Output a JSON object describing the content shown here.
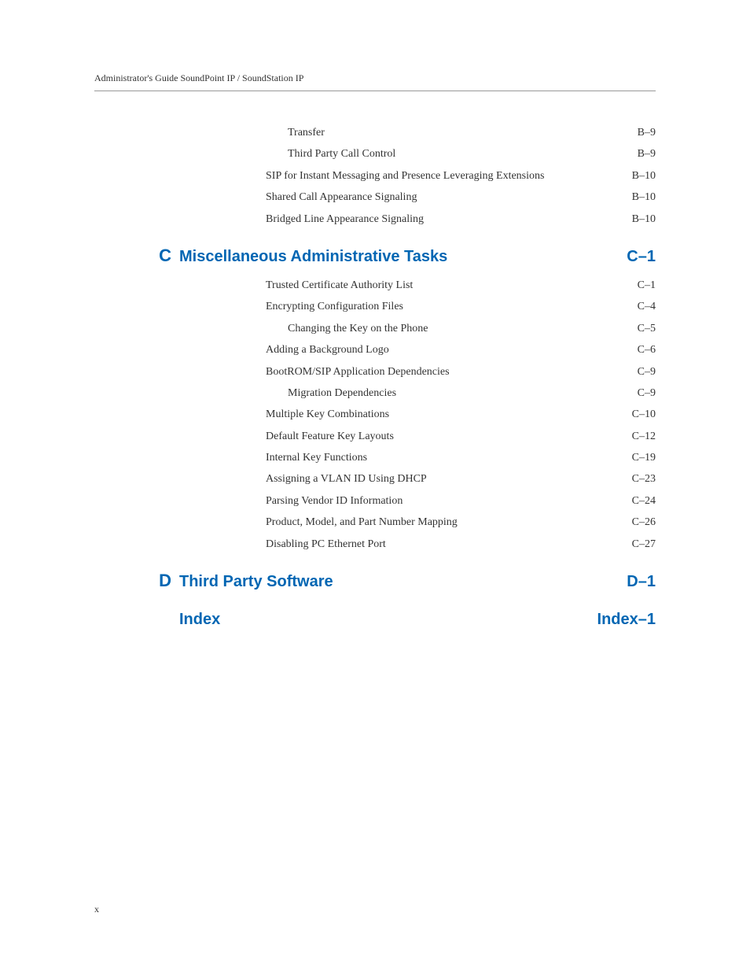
{
  "header": "Administrator's Guide SoundPoint IP / SoundStation IP",
  "page_number": "x",
  "colors": {
    "link_blue": "#0066b3",
    "text": "#333333",
    "rule": "#999999",
    "background": "#ffffff"
  },
  "top_entries": [
    {
      "level": 2,
      "label": "Transfer",
      "page": "B–9",
      "dots": true
    },
    {
      "level": 2,
      "label": "Third Party Call Control",
      "page": "B–9",
      "dots": true
    },
    {
      "level": 1,
      "label": "SIP for Instant Messaging and Presence Leveraging Extensions",
      "page": "B–10",
      "dots": true,
      "tight": true
    },
    {
      "level": 1,
      "label": "Shared Call Appearance Signaling",
      "page": "B–10",
      "dots": true
    },
    {
      "level": 1,
      "label": "Bridged Line Appearance Signaling",
      "page": "B–10",
      "dots": true
    }
  ],
  "sections": [
    {
      "letter": "C",
      "title": "Miscellaneous Administrative Tasks",
      "page": "C–1",
      "entries": [
        {
          "level": 1,
          "label": "Trusted Certificate Authority List",
          "page": "C–1",
          "dots": true
        },
        {
          "level": 1,
          "label": "Encrypting Configuration Files",
          "page": "C–4",
          "dots": true
        },
        {
          "level": 2,
          "label": "Changing the Key on the Phone",
          "page": "C–5",
          "dots": true
        },
        {
          "level": 1,
          "label": "Adding a Background Logo",
          "page": "C–6",
          "dots": true
        },
        {
          "level": 1,
          "label": "BootROM/SIP Application Dependencies",
          "page": "C–9",
          "dots": true
        },
        {
          "level": 2,
          "label": "Migration Dependencies",
          "page": "C–9",
          "dots": true
        },
        {
          "level": 1,
          "label": "Multiple Key Combinations",
          "page": "C–10",
          "dots": true
        },
        {
          "level": 1,
          "label": "Default Feature Key Layouts",
          "page": "C–12",
          "dots": true
        },
        {
          "level": 1,
          "label": "Internal Key Functions",
          "page": "C–19",
          "dots": true
        },
        {
          "level": 1,
          "label": "Assigning a VLAN ID Using DHCP",
          "page": "C–23",
          "dots": true
        },
        {
          "level": 1,
          "label": "Parsing Vendor ID Information",
          "page": "C–24",
          "dots": true
        },
        {
          "level": 1,
          "label": "Product, Model, and Part Number Mapping",
          "page": "C–26",
          "dots": true
        },
        {
          "level": 1,
          "label": "Disabling PC Ethernet Port",
          "page": "C–27",
          "dots": true
        }
      ]
    },
    {
      "letter": "D",
      "title": "Third Party Software",
      "page": "D–1",
      "entries": []
    },
    {
      "letter": "",
      "title": "Index",
      "page": "Index–1",
      "entries": []
    }
  ]
}
